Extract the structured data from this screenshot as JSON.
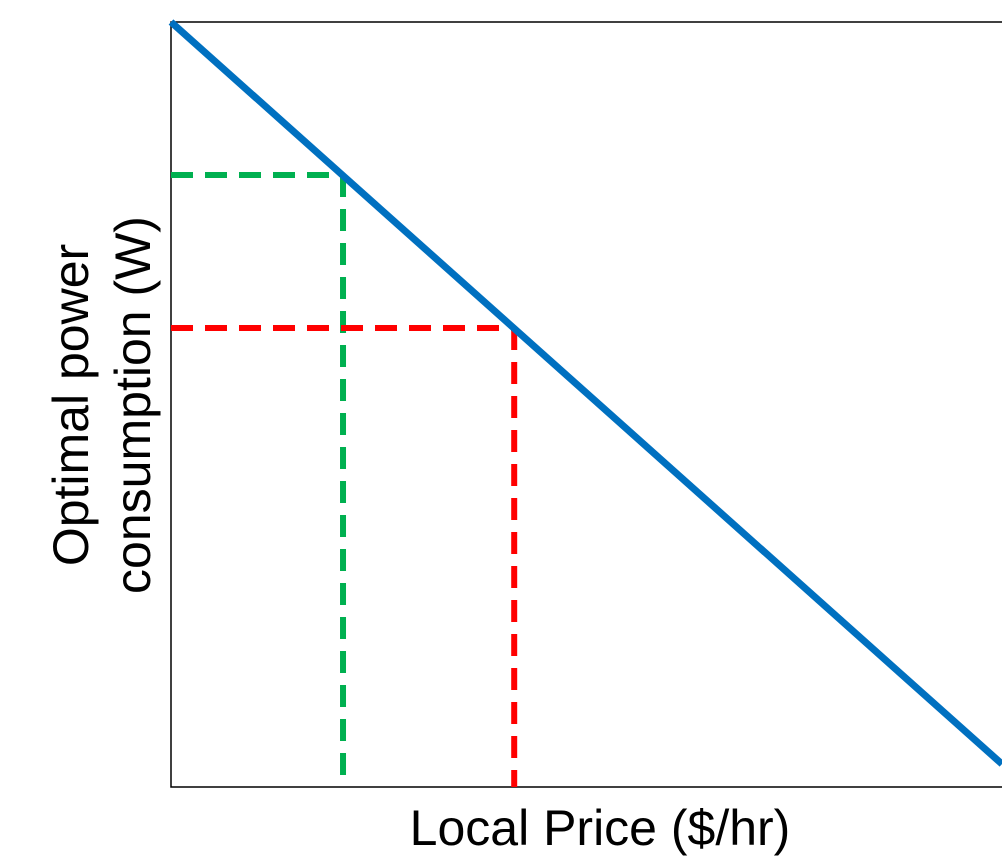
{
  "chart_data": {
    "type": "line",
    "xlabel": "Local Price ($/hr)",
    "ylabel": [
      "Optimal power",
      "consumption (W)"
    ],
    "xlim": [
      0,
      1
    ],
    "ylim": [
      0,
      1
    ],
    "series": [
      {
        "color": "#0070c0",
        "x": [
          0,
          1
        ],
        "values": [
          1,
          0.03
        ]
      }
    ],
    "reference_points": [
      {
        "color": "#00b050",
        "x": 0.207,
        "y": 0.8
      },
      {
        "color": "#ff0000",
        "x": 0.413,
        "y": 0.6
      }
    ]
  }
}
